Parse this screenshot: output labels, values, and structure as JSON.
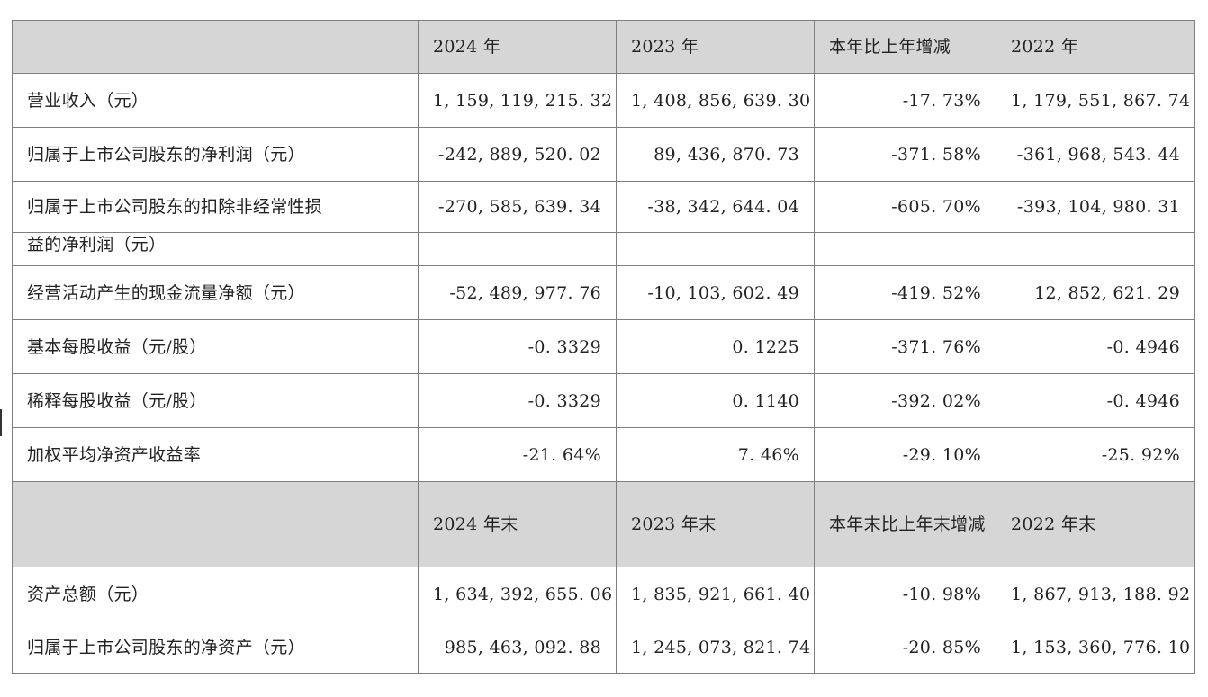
{
  "table": {
    "header1": {
      "label": "",
      "col1": "2024 年",
      "col2": "2023 年",
      "col3": "本年比上年增减",
      "col4": "2022 年"
    },
    "rows1": [
      {
        "label": "营业收入（元）",
        "v2024": "1, 159, 119, 215. 32",
        "v2023": "1, 408, 856, 639. 30",
        "change": "-17. 73%",
        "v2022": "1, 179, 551, 867. 74"
      },
      {
        "label": "归属于上市公司股东的净利润（元）",
        "v2024": "-242, 889, 520. 02",
        "v2023": "89, 436, 870. 73",
        "change": "-371. 58%",
        "v2022": "-361, 968, 543. 44"
      },
      {
        "label_line1": "归属于上市公司股东的扣除非经常性损",
        "label_line2": "益的净利润（元）",
        "v2024": "-270, 585, 639. 34",
        "v2023": "-38, 342, 644. 04",
        "change": "-605. 70%",
        "v2022": "-393, 104, 980. 31"
      },
      {
        "label": "经营活动产生的现金流量净额（元）",
        "v2024": "-52, 489, 977. 76",
        "v2023": "-10, 103, 602. 49",
        "change": "-419. 52%",
        "v2022": "12, 852, 621. 29"
      },
      {
        "label": "基本每股收益（元/股）",
        "v2024": "-0. 3329",
        "v2023": "0. 1225",
        "change": "-371. 76%",
        "v2022": "-0. 4946"
      },
      {
        "label": "稀释每股收益（元/股）",
        "v2024": "-0. 3329",
        "v2023": "0. 1140",
        "change": "-392. 02%",
        "v2022": "-0. 4946"
      },
      {
        "label": "加权平均净资产收益率",
        "v2024": "-21. 64%",
        "v2023": "7. 46%",
        "change": "-29. 10%",
        "v2022": "-25. 92%"
      }
    ],
    "header2": {
      "label": "",
      "col1": "2024 年末",
      "col2": "2023 年末",
      "col3": "本年末比上年末增减",
      "col4": "2022 年末"
    },
    "rows2": [
      {
        "label": "资产总额（元）",
        "v2024": "1, 634, 392, 655. 06",
        "v2023": "1, 835, 921, 661. 40",
        "change": "-10. 98%",
        "v2022": "1, 867, 913, 188. 92"
      },
      {
        "label": "归属于上市公司股东的净资产（元）",
        "v2024": "985, 463, 092. 88",
        "v2023": "1, 245, 073, 821. 74",
        "change": "-20. 85%",
        "v2022": "1, 153, 360, 776. 10"
      }
    ]
  },
  "colors": {
    "header_bg": "#d6d6d6",
    "border": "#7f7f7f",
    "text": "#222222"
  }
}
